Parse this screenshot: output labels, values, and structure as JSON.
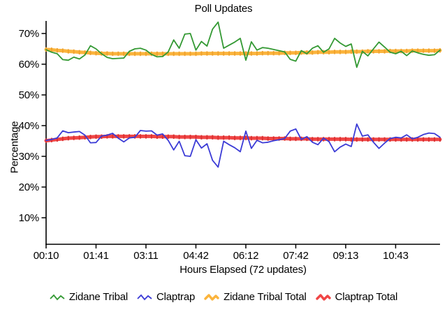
{
  "title": "Poll Updates",
  "chart_data": {
    "type": "line",
    "title": "Poll Updates",
    "xlabel": "Hours Elapsed (72 updates)",
    "ylabel": "Percentage",
    "n_points": 72,
    "ylim": [
      1.4,
      74.1
    ],
    "grid": false,
    "legend_position": "bottom",
    "y_ticks": [
      {
        "value": 10,
        "label": "10%"
      },
      {
        "value": 20,
        "label": "20%"
      },
      {
        "value": 30,
        "label": "30%"
      },
      {
        "value": 40,
        "label": "40%"
      },
      {
        "value": 50,
        "label": "50%"
      },
      {
        "value": 60,
        "label": "60%"
      },
      {
        "value": 70,
        "label": "70%"
      }
    ],
    "x_ticks": [
      {
        "index": 0,
        "label": "00:10"
      },
      {
        "index": 9,
        "label": "01:41"
      },
      {
        "index": 18,
        "label": "03:11"
      },
      {
        "index": 27,
        "label": "04:42"
      },
      {
        "index": 36,
        "label": "06:12"
      },
      {
        "index": 45,
        "label": "07:42"
      },
      {
        "index": 54,
        "label": "09:13"
      },
      {
        "index": 63,
        "label": "10:43"
      }
    ],
    "series": [
      {
        "id": "zidane-tribal",
        "name": "Zidane Tribal",
        "color": "#339933",
        "line_width": 1.8,
        "values": [
          64.7,
          63.9,
          63.4,
          61.5,
          61.3,
          62.3,
          61.7,
          63.0,
          66.0,
          65.0,
          63.4,
          62.2,
          61.8,
          61.9,
          62.0,
          64.2,
          65.0,
          65.2,
          64.6,
          63.2,
          62.4,
          62.5,
          64.0,
          67.9,
          65.2,
          69.8,
          70.0,
          64.6,
          67.4,
          65.9,
          71.4,
          73.7,
          65.2,
          66.2,
          67.2,
          68.4,
          61.3,
          67.3,
          64.6,
          65.4,
          65.2,
          64.8,
          64.4,
          64.0,
          61.6,
          61.0,
          64.4,
          63.4,
          65.2,
          66.0,
          63.9,
          65.0,
          68.4,
          66.9,
          65.8,
          66.6,
          59.0,
          64.2,
          62.7,
          65.0,
          67.2,
          65.6,
          63.9,
          63.4,
          64.2,
          62.8,
          64.3,
          63.7,
          63.2,
          62.9,
          63.1,
          64.6
        ]
      },
      {
        "id": "claptrap",
        "name": "Claptrap",
        "color": "#3B3BD6",
        "line_width": 1.8,
        "values": [
          35.2,
          35.5,
          36.0,
          38.3,
          37.7,
          37.9,
          38.1,
          36.9,
          34.4,
          34.5,
          36.6,
          36.9,
          37.5,
          35.9,
          34.7,
          36.0,
          36.2,
          38.4,
          38.2,
          38.3,
          36.9,
          37.3,
          35.2,
          32.1,
          34.9,
          30.2,
          30.0,
          35.4,
          32.7,
          34.1,
          28.7,
          26.5,
          34.9,
          33.8,
          32.8,
          31.5,
          38.2,
          32.6,
          35.2,
          34.4,
          34.6,
          35.1,
          35.4,
          35.8,
          38.2,
          38.9,
          35.5,
          36.4,
          34.6,
          33.8,
          35.9,
          34.8,
          31.5,
          33.0,
          34.0,
          33.2,
          40.5,
          36.6,
          37.0,
          34.6,
          32.6,
          34.3,
          35.8,
          36.2,
          36.0,
          37.0,
          35.7,
          36.2,
          37.1,
          37.6,
          37.4,
          36.2
        ]
      },
      {
        "id": "zidane-tribal-total",
        "name": "Zidane Tribal Total",
        "color": "#FBB43C",
        "marker_color": "#EFA12E",
        "line_width": 5,
        "values": [
          64.8,
          64.7,
          64.5,
          64.4,
          64.2,
          64.1,
          63.9,
          63.8,
          63.7,
          63.6,
          63.5,
          63.5,
          63.4,
          63.4,
          63.4,
          63.4,
          63.4,
          63.4,
          63.4,
          63.4,
          63.4,
          63.4,
          63.4,
          63.4,
          63.4,
          63.4,
          63.4,
          63.4,
          63.5,
          63.5,
          63.5,
          63.5,
          63.5,
          63.5,
          63.5,
          63.5,
          63.5,
          63.5,
          63.5,
          63.6,
          63.6,
          63.6,
          63.6,
          63.7,
          63.7,
          63.7,
          63.8,
          63.8,
          63.8,
          63.9,
          63.9,
          63.9,
          64.0,
          64.0,
          64.0,
          64.1,
          64.1,
          64.1,
          64.2,
          64.2,
          64.2,
          64.2,
          64.3,
          64.3,
          64.3,
          64.3,
          64.4,
          64.4,
          64.4,
          64.4,
          64.4,
          64.5
        ]
      },
      {
        "id": "claptrap-total",
        "name": "Claptrap Total",
        "color": "#F04545",
        "marker_color": "#D93030",
        "line_width": 5,
        "values": [
          35.1,
          35.3,
          35.5,
          35.7,
          35.9,
          36.0,
          36.1,
          36.2,
          36.3,
          36.4,
          36.4,
          36.5,
          36.5,
          36.5,
          36.5,
          36.5,
          36.5,
          36.5,
          36.5,
          36.5,
          36.4,
          36.4,
          36.4,
          36.4,
          36.3,
          36.3,
          36.3,
          36.3,
          36.2,
          36.2,
          36.2,
          36.1,
          36.1,
          36.1,
          36.0,
          36.0,
          36.0,
          35.9,
          35.9,
          35.9,
          35.8,
          35.8,
          35.8,
          35.8,
          35.7,
          35.7,
          35.7,
          35.7,
          35.6,
          35.6,
          35.6,
          35.6,
          35.6,
          35.6,
          35.6,
          35.5,
          35.5,
          35.5,
          35.5,
          35.5,
          35.5,
          35.5,
          35.5,
          35.5,
          35.5,
          35.5,
          35.5,
          35.5,
          35.5,
          35.5,
          35.5,
          35.5
        ]
      }
    ]
  }
}
